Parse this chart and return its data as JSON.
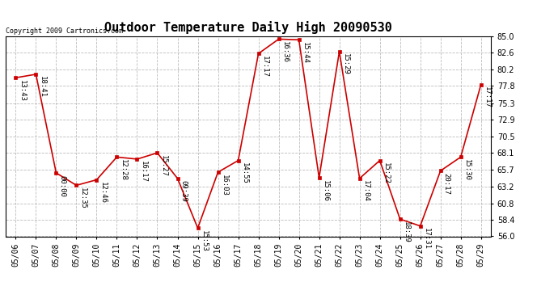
{
  "title": "Outdoor Temperature Daily High 20090530",
  "copyright": "Copyright 2009 Cartronics.com",
  "dates": [
    "05/06",
    "05/07",
    "05/08",
    "05/09",
    "05/10",
    "05/11",
    "05/12",
    "05/13",
    "05/14",
    "05/15",
    "05/16",
    "05/17",
    "05/18",
    "05/19",
    "05/20",
    "05/21",
    "05/22",
    "05/23",
    "05/24",
    "05/25",
    "05/26",
    "05/27",
    "05/28",
    "05/29"
  ],
  "values": [
    79.0,
    79.5,
    65.2,
    63.4,
    64.2,
    67.5,
    67.2,
    68.1,
    64.4,
    57.2,
    65.3,
    67.0,
    82.5,
    84.6,
    84.5,
    64.5,
    82.8,
    64.4,
    67.0,
    58.5,
    57.5,
    65.5,
    67.5,
    78.0
  ],
  "times": [
    "13:43",
    "18:41",
    "00:00",
    "12:35",
    "12:46",
    "12:28",
    "16:17",
    "15:27",
    "09:39",
    "15:53",
    "16:03",
    "14:55",
    "17:17",
    "16:36",
    "15:44",
    "15:06",
    "15:29",
    "17:04",
    "15:22",
    "18:39",
    "17:31",
    "20:17",
    "15:30",
    "17:17"
  ],
  "ylim": [
    56.0,
    85.0
  ],
  "yticks": [
    56.0,
    58.4,
    60.8,
    63.2,
    65.7,
    68.1,
    70.5,
    72.9,
    75.3,
    77.8,
    80.2,
    82.6,
    85.0
  ],
  "line_color": "#cc0000",
  "marker_color": "#cc0000",
  "bg_color": "#ffffff",
  "grid_color": "#bbbbbb",
  "title_fontsize": 11,
  "label_fontsize": 7,
  "annotation_fontsize": 6.5,
  "copyright_fontsize": 6
}
